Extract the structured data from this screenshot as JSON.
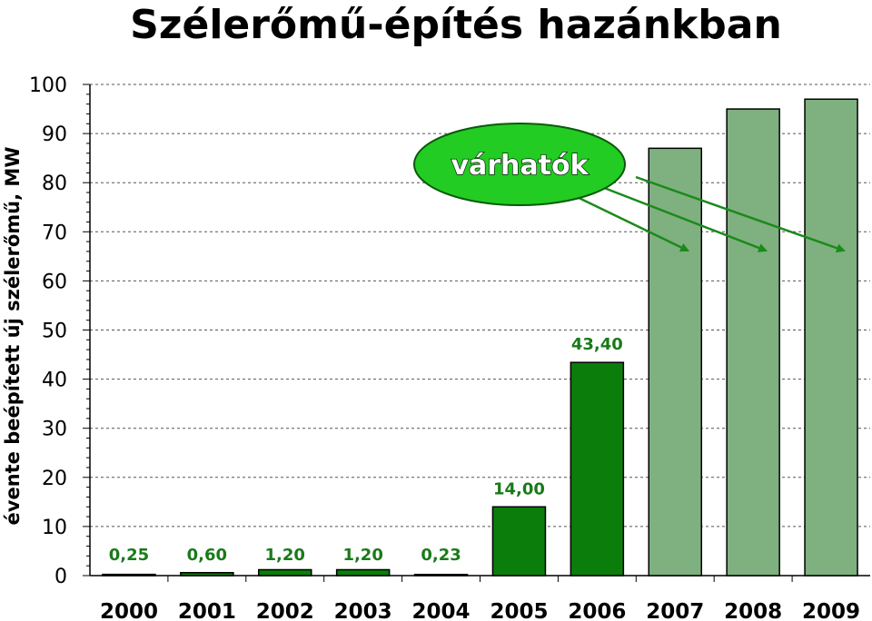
{
  "chart_data": {
    "type": "bar",
    "title": "Szélerőmű-építés hazánkban",
    "ylabel": "évente beépített új szélerőmű, MW",
    "xlabel": "",
    "categories": [
      "2000",
      "2001",
      "2002",
      "2003",
      "2004",
      "2005",
      "2006",
      "2007",
      "2008",
      "2009"
    ],
    "values": [
      0.25,
      0.6,
      1.2,
      1.2,
      0.23,
      14.0,
      43.4,
      87,
      95,
      97
    ],
    "data_labels": [
      "0,25",
      "0,60",
      "1,20",
      "1,20",
      "0,23",
      "14,00",
      "43,40",
      "",
      "",
      ""
    ],
    "expected": [
      false,
      false,
      false,
      false,
      false,
      false,
      false,
      true,
      true,
      true
    ],
    "ylim": [
      0,
      100
    ],
    "yticks": [
      0,
      10,
      20,
      30,
      40,
      50,
      60,
      70,
      80,
      90,
      100
    ],
    "grid": true,
    "colors": {
      "actual": "#0b7d0b",
      "expected": "#7fb07f",
      "label": "#1a7a1a",
      "callout_fill": "#22cc22",
      "arrow": "#1a8a1a"
    },
    "annotation": {
      "text": "várhatók",
      "points_to": [
        "2007",
        "2008",
        "2009"
      ]
    }
  }
}
